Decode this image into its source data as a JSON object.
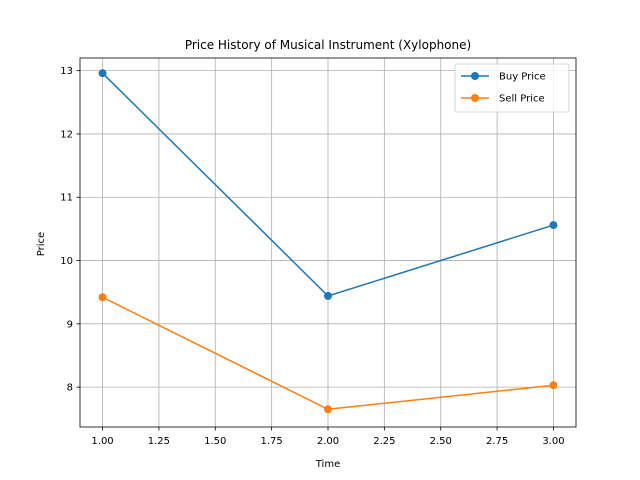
{
  "chart_data": {
    "type": "line",
    "title": "Price History of Musical Instrument (Xylophone)",
    "xlabel": "Time",
    "ylabel": "Price",
    "xlim": [
      0.9,
      3.1
    ],
    "ylim": [
      7.37,
      13.2
    ],
    "xticks": [
      1.0,
      1.25,
      1.5,
      1.75,
      2.0,
      2.25,
      2.5,
      2.75,
      3.0
    ],
    "xtick_labels": [
      "1.00",
      "1.25",
      "1.50",
      "1.75",
      "2.00",
      "2.25",
      "2.50",
      "2.75",
      "3.00"
    ],
    "yticks": [
      8,
      9,
      10,
      11,
      12,
      13
    ],
    "ytick_labels": [
      "8",
      "9",
      "10",
      "11",
      "12",
      "13"
    ],
    "grid": true,
    "legend_position": "top-right",
    "x": [
      1,
      2,
      3
    ],
    "series": [
      {
        "name": "Buy Price",
        "color": "#1f77b4",
        "values": [
          12.96,
          9.44,
          10.56
        ]
      },
      {
        "name": "Sell Price",
        "color": "#ff7f0e",
        "values": [
          9.42,
          7.65,
          8.03
        ]
      }
    ]
  }
}
